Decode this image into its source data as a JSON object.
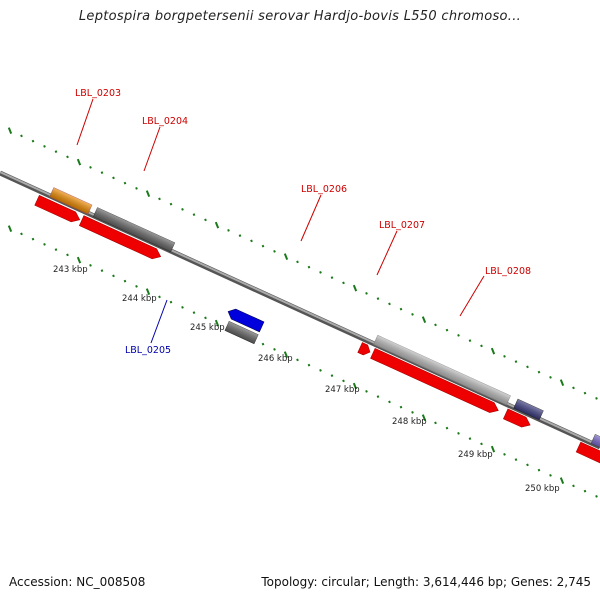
{
  "title": "Leptospira borgpetersenii serovar Hardjo-bovis L550 chromoso...",
  "footer": {
    "accession": "Accession: NC_008508",
    "summary": "Topology: circular; Length: 3,614,446 bp; Genes: 2,745"
  },
  "scale": {
    "ticks": [
      {
        "label": "243 kbp"
      },
      {
        "label": "244 kbp"
      },
      {
        "label": "245 kbp"
      },
      {
        "label": "246 kbp"
      },
      {
        "label": "247 kbp"
      },
      {
        "label": "248 kbp"
      },
      {
        "label": "249 kbp"
      },
      {
        "label": "250 kbp"
      }
    ]
  },
  "genes": [
    {
      "label": "LBL_0203",
      "strand": "forward",
      "color": "#f08c00"
    },
    {
      "label": "LBL_0204",
      "strand": "forward",
      "color": "#666666"
    },
    {
      "label": "LBL_0205",
      "strand": "reverse",
      "color": "#0000dd"
    },
    {
      "label": "LBL_0206",
      "strand": "forward",
      "color": "#bbbbbb"
    },
    {
      "label": "LBL_0207",
      "strand": "forward",
      "color": "#bbbbbb"
    },
    {
      "label": "LBL_0208",
      "strand": "forward",
      "color": "#3a3a80"
    }
  ],
  "colors": {
    "cds": "#ee0000",
    "backbone": "#888888",
    "forward_label": "#cc0000",
    "reverse_label": "#0000aa",
    "tick": "#1a7a1a"
  }
}
